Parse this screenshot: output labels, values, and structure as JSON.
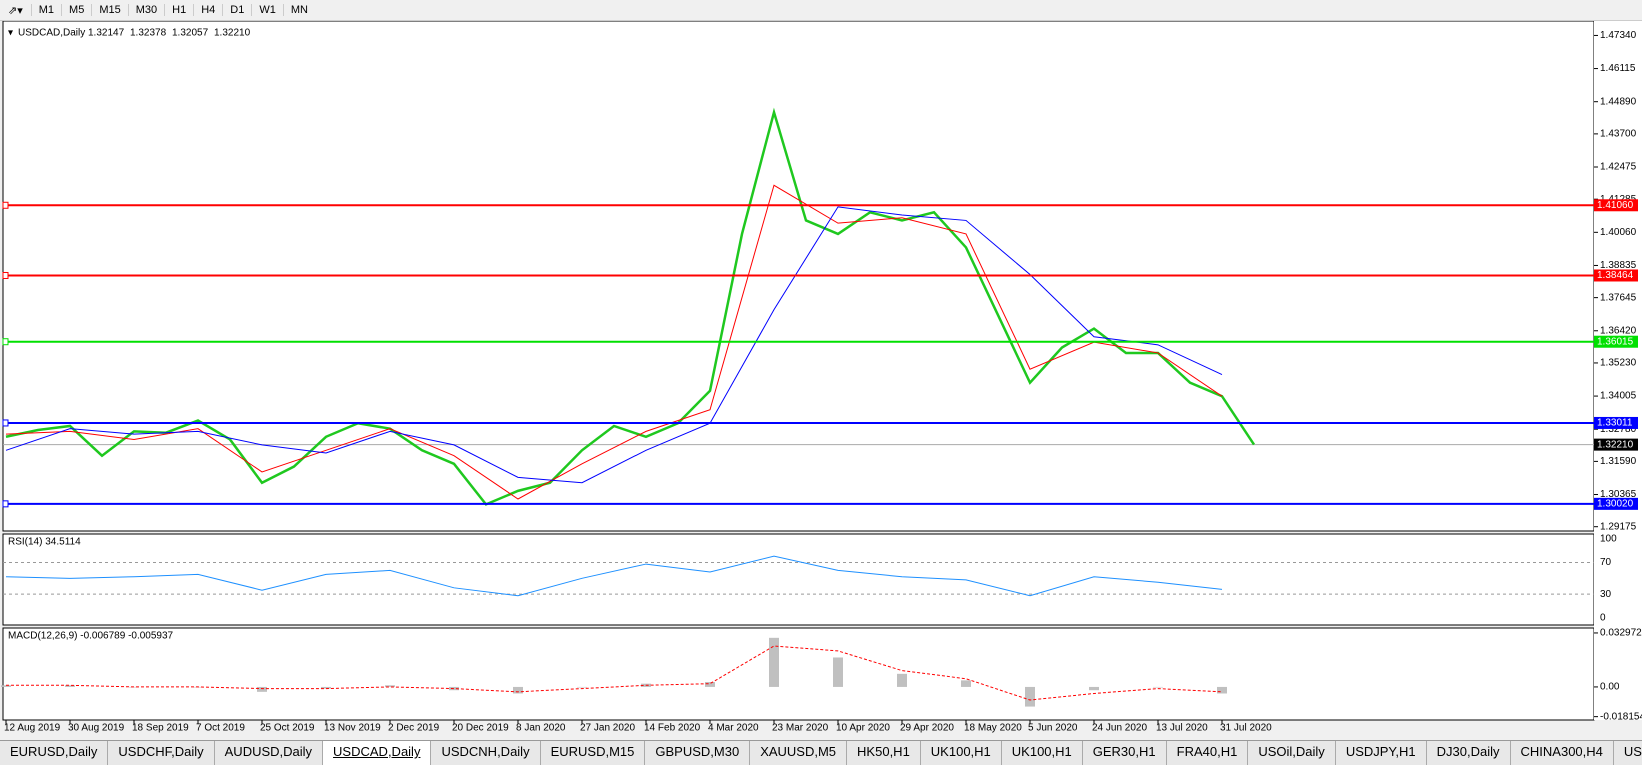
{
  "toolbar": {
    "timeframes": [
      "M1",
      "M5",
      "M15",
      "M30",
      "H1",
      "H4",
      "D1",
      "W1",
      "MN"
    ]
  },
  "chart": {
    "symbol": "USDCAD,Daily",
    "ohlc": [
      "1.32147",
      "1.32378",
      "1.32057",
      "1.32210"
    ],
    "ylim": [
      1.2909,
      1.478
    ],
    "price_ticks": [
      {
        "value": 1.4734,
        "label": "1.47340"
      },
      1.46115,
      {
        "value": 1.4489,
        "label": "1.44890"
      },
      {
        "value": 1.437,
        "label": "1.43700"
      },
      1.42475,
      1.41285,
      {
        "value": 1.4006,
        "label": "1.40060"
      },
      1.38835,
      1.37645,
      {
        "value": 1.3642,
        "label": "1.36420"
      },
      {
        "value": 1.3523,
        "label": "1.35230"
      },
      1.34005,
      {
        "value": 1.3278,
        "label": "1.32780"
      },
      {
        "value": 1.3159,
        "label": "1.31590"
      },
      1.30365,
      1.29175
    ],
    "levels": [
      {
        "value": 1.4106,
        "label": "1.41060",
        "color": "#ff0000"
      },
      {
        "value": 1.38464,
        "label": "1.38464",
        "color": "#ff0000"
      },
      {
        "value": 1.36015,
        "label": "1.36015",
        "color": "#00e000"
      },
      {
        "value": 1.33011,
        "label": "1.33011",
        "color": "#0000ff"
      },
      {
        "value": 1.3002,
        "label": "1.30020",
        "color": "#0000ff"
      }
    ],
    "current": {
      "value": 1.3221,
      "label": "1.32210"
    },
    "close": {
      "color": "#1fc81f",
      "values": [
        1.325,
        1.3275,
        1.329,
        1.318,
        1.327,
        1.3265,
        1.331,
        1.324,
        1.308,
        1.314,
        1.325,
        1.33,
        1.328,
        1.32,
        1.315,
        1.3,
        1.305,
        1.308,
        1.32,
        1.329,
        1.325,
        1.33,
        1.342,
        1.4,
        1.445,
        1.405,
        1.4,
        1.408,
        1.405,
        1.408,
        1.395,
        1.37,
        1.345,
        1.358,
        1.365,
        1.356,
        1.356,
        1.345,
        1.34,
        1.3221
      ]
    },
    "ma_fast": {
      "color": "#ff0000",
      "values": [
        1.326,
        1.327,
        1.324,
        1.328,
        1.312,
        1.32,
        1.328,
        1.318,
        1.302,
        1.315,
        1.327,
        1.335,
        1.418,
        1.404,
        1.406,
        1.4,
        1.35,
        1.36,
        1.356,
        1.34
      ]
    },
    "ma_slow": {
      "color": "#0000ff",
      "values": [
        1.32,
        1.328,
        1.326,
        1.327,
        1.322,
        1.319,
        1.327,
        1.322,
        1.31,
        1.308,
        1.32,
        1.33,
        1.372,
        1.41,
        1.407,
        1.405,
        1.385,
        1.362,
        1.359,
        1.348
      ]
    },
    "dates": [
      "12 Aug 2019",
      "30 Aug 2019",
      "18 Sep 2019",
      "7 Oct 2019",
      "25 Oct 2019",
      "13 Nov 2019",
      "2 Dec 2019",
      "20 Dec 2019",
      "8 Jan 2020",
      "27 Jan 2020",
      "14 Feb 2020",
      "4 Mar 2020",
      "23 Mar 2020",
      "10 Apr 2020",
      "29 Apr 2020",
      "18 May 2020",
      "5 Jun 2020",
      "24 Jun 2020",
      "13 Jul 2020",
      "31 Jul 2020"
    ]
  },
  "rsi": {
    "title": "RSI(14) 34.5114",
    "ylim": [
      -9,
      106
    ],
    "ticks": [
      100,
      70,
      30,
      0
    ],
    "color": "#1e90ff",
    "values": [
      52,
      50,
      52,
      55,
      35,
      55,
      60,
      38,
      28,
      50,
      68,
      58,
      78,
      60,
      52,
      48,
      28,
      52,
      45,
      36
    ]
  },
  "macd": {
    "title": "MACD(12,26,9) -0.006789 -0.005937",
    "ylim": [
      -0.0202,
      0.036
    ],
    "ticks": [
      0.032972,
      {
        "value": 0,
        "label": "0.00"
      },
      -0.018154
    ],
    "histogram": [
      0.001,
      0.001,
      0,
      0,
      -0.003,
      -0.001,
      0.001,
      -0.002,
      -0.004,
      0,
      0.002,
      0.003,
      0.03,
      0.018,
      0.008,
      0.004,
      -0.012,
      -0.002,
      0,
      -0.004
    ],
    "signal": {
      "color": "#ff0000",
      "values": [
        0.001,
        0.001,
        0,
        0,
        -0.001,
        -0.001,
        0,
        -0.001,
        -0.003,
        -0.001,
        0.001,
        0.002,
        0.025,
        0.022,
        0.01,
        0.005,
        -0.008,
        -0.004,
        -0.001,
        -0.003
      ]
    }
  },
  "tabs": [
    "EURUSD,Daily",
    "USDCHF,Daily",
    "AUDUSD,Daily",
    "USDCAD,Daily",
    "USDCNH,Daily",
    "EURUSD,M15",
    "GBPUSD,M30",
    "XAUUSD,M5",
    "HK50,H1",
    "UK100,H1",
    "UK100,H1",
    "GER30,H1",
    "FRA40,H1",
    "USOil,Daily",
    "USDJPY,H1",
    "DJ30,Daily",
    "CHINA300,H4",
    "USOil,D"
  ],
  "active_tab": 3
}
